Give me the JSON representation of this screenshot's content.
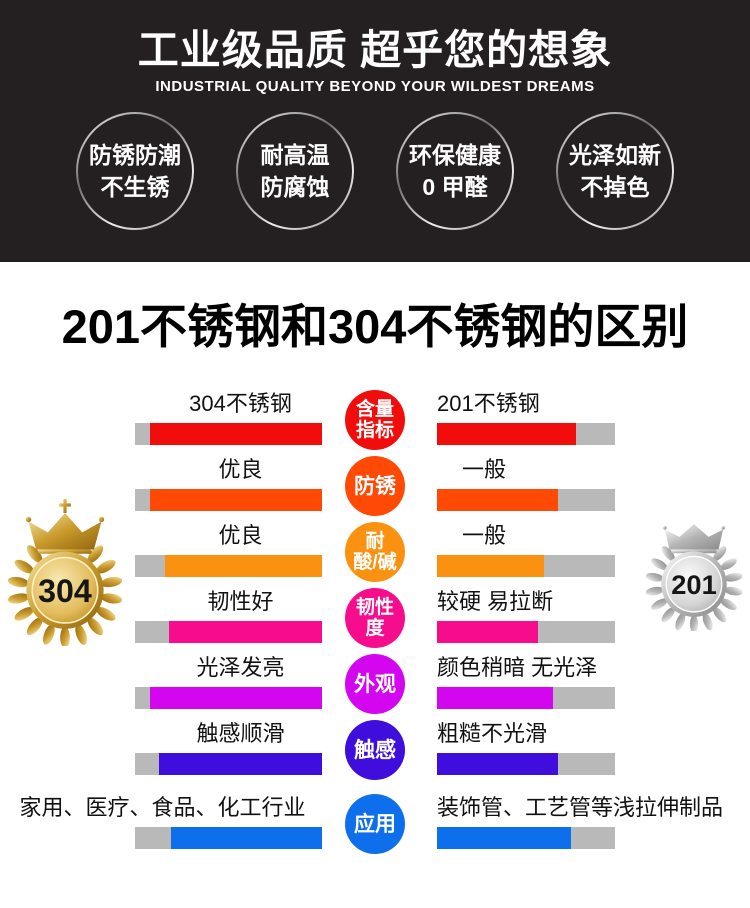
{
  "header": {
    "title": "工业级品质 超乎您的想象",
    "subtitle": "INDUSTRIAL QUALITY BEYOND YOUR WILDEST DREAMS",
    "background_color": "#242021",
    "features": [
      {
        "line1": "防锈防潮",
        "line2": "不生锈"
      },
      {
        "line1": "耐高温",
        "line2": "防腐蚀"
      },
      {
        "line1": "环保健康",
        "line2": "0 甲醛"
      },
      {
        "line1": "光泽如新",
        "line2": "不掉色"
      }
    ]
  },
  "section_title": "201不锈钢和304不锈钢的区别",
  "badges": {
    "left": {
      "value": "304",
      "style": "gold"
    },
    "right": {
      "value": "201",
      "style": "silver"
    }
  },
  "comparison": {
    "left_series": "304不锈钢",
    "right_series": "201不锈钢",
    "gray_color": "#b9b9b9",
    "rows": [
      {
        "category": "含量指标",
        "category_lines": [
          "含量",
          "指标"
        ],
        "color": "#f20d0d",
        "left": "304不锈钢",
        "right": "201不锈钢",
        "left_fill": 0.92,
        "right_fill": 0.78
      },
      {
        "category": "防锈",
        "category_lines": [
          "防锈"
        ],
        "color": "#ff4a06",
        "left": "优良",
        "right": "一般",
        "left_fill": 0.92,
        "right_fill": 0.68
      },
      {
        "category": "耐酸/碱",
        "category_lines": [
          "耐",
          "酸/碱"
        ],
        "color": "#fb9110",
        "left": "优良",
        "right": "一般",
        "left_fill": 0.84,
        "right_fill": 0.6
      },
      {
        "category": "韧性度",
        "category_lines": [
          "韧性",
          "度"
        ],
        "color": "#f60d8e",
        "left": "韧性好",
        "right": "较硬 易拉断",
        "left_fill": 0.82,
        "right_fill": 0.57
      },
      {
        "category": "外观",
        "category_lines": [
          "外观"
        ],
        "color": "#d405ef",
        "left": "光泽发亮",
        "right": "颜色稍暗 无光泽",
        "left_fill": 0.92,
        "right_fill": 0.65
      },
      {
        "category": "触感",
        "category_lines": [
          "触感"
        ],
        "color": "#3f0edd",
        "left": "触感顺滑",
        "right": "粗糙不光滑",
        "left_fill": 0.87,
        "right_fill": 0.68
      },
      {
        "category": "应用",
        "category_lines": [
          "应用"
        ],
        "color": "#0d6feb",
        "left": "家用、医疗、食品、化工行业",
        "right": "装饰管、工艺管等浅拉伸制品",
        "left_fill": 0.81,
        "right_fill": 0.75
      }
    ]
  }
}
